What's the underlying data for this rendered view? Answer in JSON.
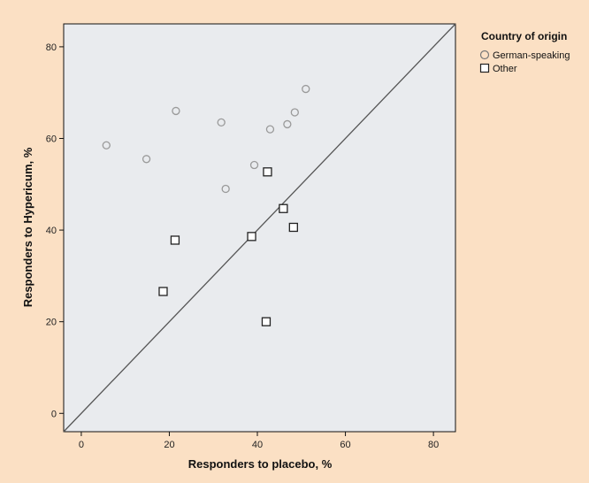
{
  "chart_data": {
    "type": "scatter",
    "title": "",
    "xlabel": "Responders to placebo, %",
    "ylabel": "Responders to Hypericum, %",
    "xlim": [
      -4,
      85
    ],
    "ylim": [
      -4,
      85
    ],
    "xticks": [
      0,
      20,
      40,
      60,
      80
    ],
    "yticks": [
      0,
      20,
      40,
      60,
      80
    ],
    "grid": false,
    "legend": {
      "title": "Country of origin",
      "placement": "right"
    },
    "reference_line": "y = x",
    "colors": {
      "background": "#fbe0c4",
      "plot_area": "#e9ebee",
      "circle": "#9a9a9a",
      "square": "#222222",
      "line": "#555555"
    },
    "series": [
      {
        "name": "German-speaking",
        "marker": "circle",
        "points": [
          {
            "x": 5.7,
            "y": 58.5
          },
          {
            "x": 14.8,
            "y": 55.5
          },
          {
            "x": 21.5,
            "y": 66.0
          },
          {
            "x": 31.8,
            "y": 63.5
          },
          {
            "x": 32.8,
            "y": 49.0
          },
          {
            "x": 39.3,
            "y": 54.2
          },
          {
            "x": 42.9,
            "y": 62.0
          },
          {
            "x": 46.8,
            "y": 63.1
          },
          {
            "x": 48.5,
            "y": 65.7
          },
          {
            "x": 51.0,
            "y": 70.8
          }
        ]
      },
      {
        "name": "Other",
        "marker": "square",
        "points": [
          {
            "x": 18.6,
            "y": 26.6
          },
          {
            "x": 21.3,
            "y": 37.8
          },
          {
            "x": 38.7,
            "y": 38.6
          },
          {
            "x": 42.0,
            "y": 20.0
          },
          {
            "x": 42.3,
            "y": 52.7
          },
          {
            "x": 45.9,
            "y": 44.7
          },
          {
            "x": 48.2,
            "y": 40.6
          }
        ]
      }
    ]
  }
}
